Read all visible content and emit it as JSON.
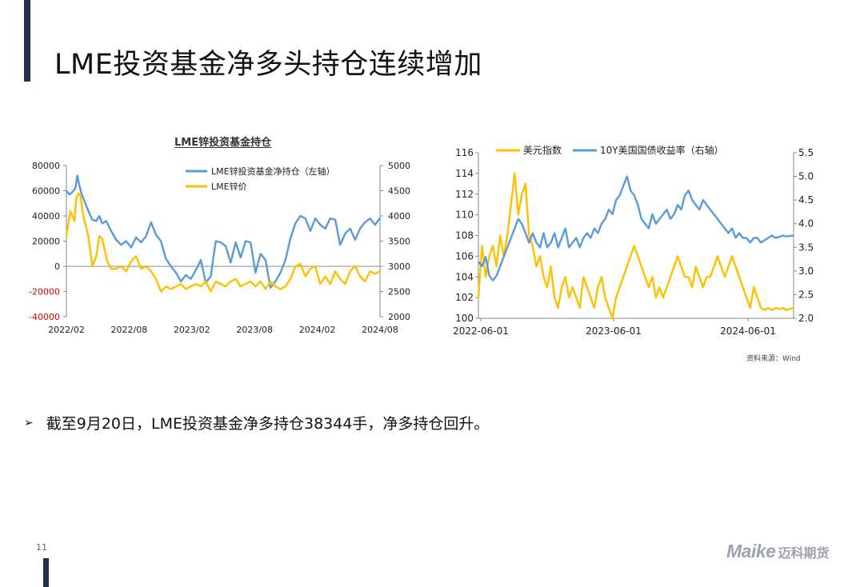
{
  "page": {
    "title": "LME投资基金净多头持仓连续增加",
    "bullet": "截至9月20日，LME投资基金净多持仓38344手，净多持仓回升。",
    "source": "资料来源：Wind",
    "page_number": "11",
    "logo_latin": "Maike",
    "logo_cn": "迈科期货"
  },
  "colors": {
    "accent": "#243049",
    "blue": "#5b9bd5",
    "yellow": "#ffc000",
    "negative": "#e00000"
  },
  "chart_data": [
    {
      "type": "line",
      "title": "LME锌投资基金持仓",
      "categories": [
        "2022/02",
        "2022/08",
        "2023/02",
        "2023/08",
        "2024/02",
        "2024/08"
      ],
      "left_axis": {
        "range": [
          -40000,
          80000
        ],
        "ticks": [
          "80000",
          "60000",
          "40000",
          "20000",
          "0",
          "-20000",
          "-40000"
        ]
      },
      "right_axis": {
        "range": [
          2000,
          5000
        ],
        "ticks": [
          "5000",
          "4500",
          "4000",
          "3500",
          "3000",
          "2500",
          "2000"
        ]
      },
      "series": [
        {
          "name": "LME锌投资基金净持仓（左轴）",
          "axis": "left",
          "color": "#5b9bd5",
          "x": [
            0,
            0.3,
            0.6,
            0.9,
            1.1,
            1.25,
            1.5,
            1.8,
            2.2,
            2.6,
            3.0,
            3.3,
            3.6,
            4,
            4.5,
            5,
            5.5,
            6,
            6.5,
            7,
            7.5,
            8,
            8.5,
            9,
            9.5,
            10,
            10.5,
            11,
            11.5,
            12,
            12.5,
            13,
            13.5,
            14,
            14.5,
            15,
            15.5,
            16,
            16.5,
            17,
            17.5,
            18,
            18.5,
            19,
            19.5,
            20,
            20.5,
            21,
            21.5,
            22,
            22.5,
            23,
            23.5,
            24,
            24.5,
            25,
            25.5,
            26,
            26.5,
            27,
            27.5,
            28,
            28.5,
            29,
            29.5,
            30,
            30.5,
            31,
            31.5
          ],
          "values": [
            60000,
            57000,
            59000,
            62000,
            72000,
            66000,
            58000,
            52000,
            44000,
            37000,
            36000,
            40000,
            34000,
            36000,
            28000,
            21000,
            17000,
            20000,
            15000,
            23000,
            19000,
            24000,
            35000,
            25000,
            20000,
            6000,
            0,
            -5000,
            -12000,
            -7000,
            -10000,
            -3000,
            5000,
            -13000,
            -8000,
            20000,
            19000,
            16000,
            3000,
            19000,
            7000,
            20000,
            19000,
            -5000,
            10000,
            5000,
            -17000,
            -12000,
            -5000,
            5000,
            22000,
            34000,
            40000,
            38000,
            28000,
            38000,
            33000,
            30000,
            38000,
            37000,
            17000,
            26000,
            30000,
            21000,
            30000,
            35000,
            38000,
            33000,
            38344
          ]
        },
        {
          "name": "LME锌价",
          "axis": "right",
          "color": "#ffc000",
          "x": [
            0,
            0.4,
            0.8,
            1,
            1.2,
            1.4,
            1.7,
            2.2,
            2.6,
            3.0,
            3.3,
            3.6,
            4.1,
            4.5,
            5,
            5.5,
            6,
            6.5,
            7,
            7.5,
            8,
            8.5,
            9,
            9.5,
            10,
            10.5,
            11,
            11.5,
            12,
            12.5,
            13,
            13.5,
            14,
            14.5,
            15,
            15.5,
            16,
            16.5,
            17,
            17.5,
            18,
            18.5,
            19,
            19.5,
            20,
            20.5,
            21,
            21.5,
            22,
            22.5,
            23,
            23.5,
            24,
            24.5,
            25,
            25.5,
            26,
            26.5,
            27,
            27.5,
            28,
            28.5,
            29,
            29.5,
            30,
            30.5,
            31,
            31.5
          ],
          "values": [
            3600,
            4100,
            3900,
            4350,
            4450,
            4400,
            4000,
            3600,
            3000,
            3200,
            3600,
            3550,
            3100,
            2950,
            2950,
            3000,
            2900,
            3100,
            3200,
            2950,
            3000,
            2900,
            2750,
            2500,
            2600,
            2550,
            2600,
            2650,
            2550,
            2600,
            2650,
            2600,
            2700,
            2500,
            2700,
            2650,
            2600,
            2700,
            2750,
            2600,
            2650,
            2700,
            2600,
            2700,
            2550,
            2700,
            2600,
            2550,
            2600,
            2750,
            3000,
            3050,
            2800,
            2950,
            3000,
            2650,
            2800,
            2650,
            2900,
            2750,
            2650,
            2900,
            3000,
            2800,
            2700,
            2900,
            2850,
            2900
          ]
        }
      ]
    },
    {
      "type": "line",
      "categories": [
        "2022-06-01",
        "2023-06-01",
        "2024-06-01"
      ],
      "left_axis": {
        "range": [
          100,
          116
        ],
        "ticks": [
          "116",
          "114",
          "112",
          "110",
          "108",
          "106",
          "104",
          "102",
          "100"
        ]
      },
      "right_axis": {
        "range": [
          2.0,
          5.5
        ],
        "ticks": [
          "5.5",
          "5.0",
          "4.5",
          "4.0",
          "3.5",
          "3.0",
          "2.5",
          "2.0"
        ]
      },
      "series": [
        {
          "name": "美元指数",
          "axis": "left",
          "color": "#ffc000",
          "x": [
            0,
            0.3,
            0.6,
            0.9,
            1.2,
            1.5,
            1.8,
            2.1,
            2.4,
            2.7,
            3,
            3.3,
            3.6,
            3.9,
            4.2,
            4.5,
            4.8,
            5.1,
            5.4,
            5.7,
            6,
            6.3,
            6.6,
            6.9,
            7.2,
            7.5,
            7.8,
            8.1,
            8.4,
            8.7,
            9,
            9.3,
            9.6,
            9.9,
            10.2,
            10.5,
            10.8,
            11.1,
            11.4,
            11.7,
            12,
            12.3,
            12.6,
            12.9,
            13.2,
            13.5,
            13.8,
            14.1,
            14.4,
            14.7,
            15,
            15.3,
            15.6,
            15.9,
            16.2,
            16.5,
            16.8,
            17.1,
            17.4,
            17.7,
            18,
            18.3,
            18.6,
            18.9,
            19.2,
            19.5,
            19.8,
            20.1,
            20.4,
            20.7,
            21,
            21.3,
            21.6,
            21.9,
            22.2,
            22.5,
            22.8,
            23.1,
            23.4,
            23.7,
            24,
            24.3,
            24.6,
            24.9,
            25.2,
            25.5,
            25.8,
            26.1
          ],
          "values": [
            102,
            107,
            104,
            106,
            107,
            105,
            108,
            106,
            108,
            111,
            114,
            110,
            112,
            113,
            108,
            107,
            105,
            106,
            104,
            103,
            105,
            102,
            101,
            103,
            104,
            102,
            103,
            102,
            101,
            104,
            103,
            102,
            101,
            103,
            104,
            102,
            101,
            100,
            102,
            103,
            104,
            105,
            106,
            107,
            106,
            105,
            104,
            103,
            104,
            102,
            103,
            102,
            103,
            104,
            105,
            106,
            105,
            104,
            104,
            103,
            105,
            104,
            103,
            104,
            104,
            105,
            106,
            105,
            104,
            105,
            106,
            105,
            104,
            103,
            102,
            101,
            103,
            102,
            101,
            100.8,
            101,
            100.8,
            101,
            100.9,
            101,
            100.8,
            100.9,
            101
          ]
        },
        {
          "name": "10Y美国国债收益率（右轴）",
          "axis": "right",
          "color": "#5b9bd5",
          "x": [
            0,
            0.3,
            0.6,
            0.9,
            1.2,
            1.5,
            1.8,
            2.1,
            2.4,
            2.7,
            3,
            3.3,
            3.6,
            3.9,
            4.2,
            4.5,
            4.8,
            5.1,
            5.4,
            5.7,
            6,
            6.3,
            6.6,
            6.9,
            7.2,
            7.5,
            7.8,
            8.1,
            8.4,
            8.7,
            9,
            9.3,
            9.6,
            9.9,
            10.2,
            10.5,
            10.8,
            11.1,
            11.4,
            11.7,
            12,
            12.3,
            12.6,
            12.9,
            13.2,
            13.5,
            13.8,
            14.1,
            14.4,
            14.7,
            15,
            15.3,
            15.6,
            15.9,
            16.2,
            16.5,
            16.8,
            17.1,
            17.4,
            17.7,
            18,
            18.3,
            18.6,
            18.9,
            19.2,
            19.5,
            19.8,
            20.1,
            20.4,
            20.7,
            21,
            21.3,
            21.6,
            21.9,
            22.2,
            22.5,
            22.8,
            23.1,
            23.4,
            23.7,
            24,
            24.3,
            24.6,
            24.9,
            25.2,
            25.5,
            25.8,
            26.1
          ],
          "values": [
            3.2,
            3.1,
            3.3,
            2.9,
            2.8,
            2.9,
            3.1,
            3.3,
            3.5,
            3.7,
            3.9,
            4.1,
            4.0,
            3.8,
            3.6,
            3.8,
            3.6,
            3.5,
            3.8,
            3.5,
            3.6,
            3.8,
            3.5,
            3.7,
            3.9,
            3.5,
            3.6,
            3.7,
            3.5,
            3.7,
            3.8,
            3.7,
            3.9,
            3.8,
            4.0,
            4.1,
            4.3,
            4.2,
            4.5,
            4.6,
            4.8,
            5.0,
            4.7,
            4.6,
            4.4,
            4.1,
            4.0,
            3.9,
            4.2,
            4.0,
            4.1,
            4.2,
            4.3,
            4.1,
            4.2,
            4.4,
            4.3,
            4.6,
            4.7,
            4.5,
            4.4,
            4.3,
            4.5,
            4.4,
            4.3,
            4.2,
            4.1,
            4.0,
            3.9,
            3.8,
            3.9,
            3.7,
            3.8,
            3.7,
            3.7,
            3.6,
            3.7,
            3.7,
            3.6,
            3.65,
            3.7,
            3.75,
            3.7,
            3.72,
            3.75,
            3.73,
            3.74,
            3.75
          ]
        }
      ]
    }
  ]
}
